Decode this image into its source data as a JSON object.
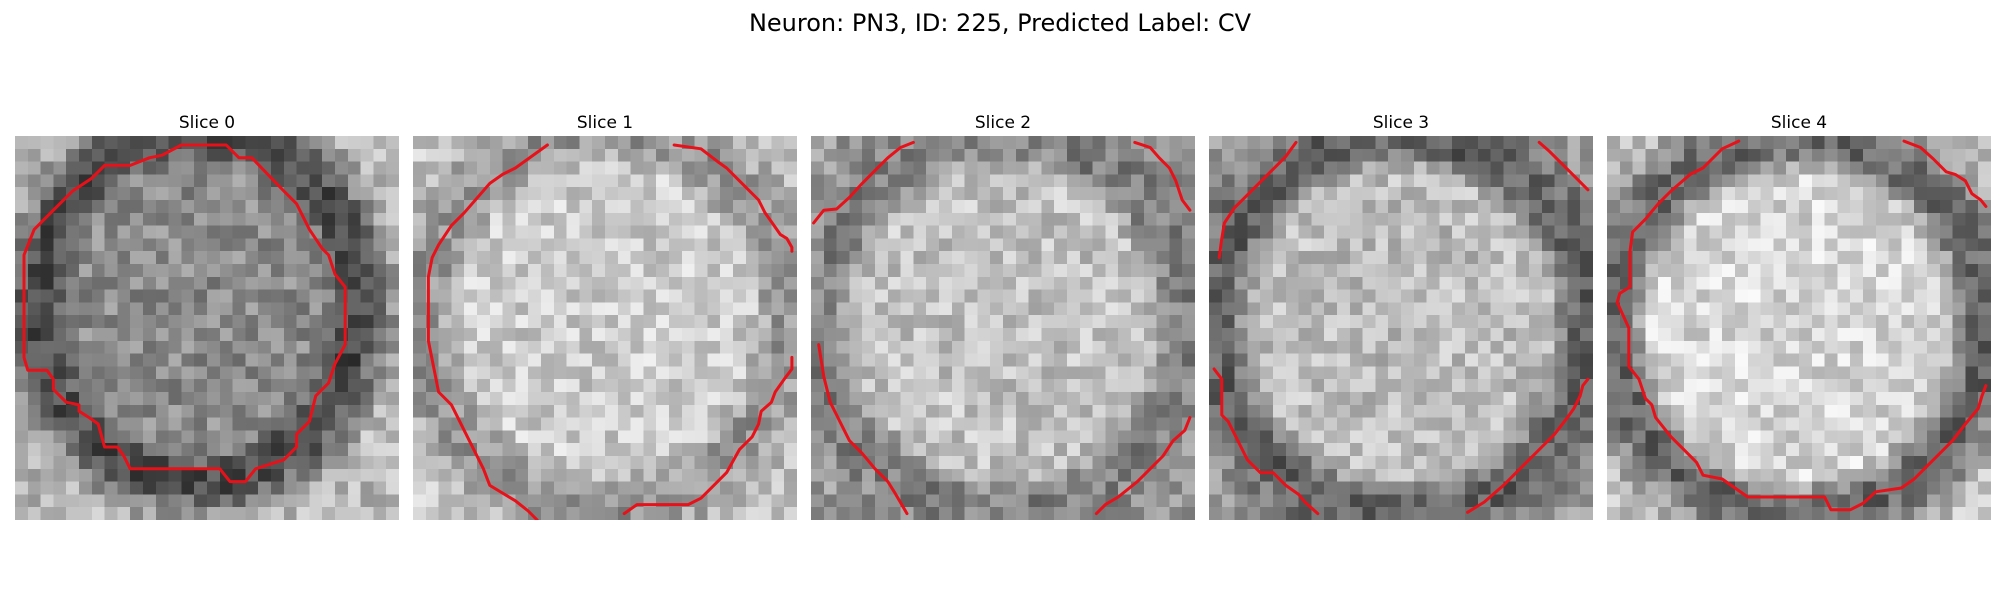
{
  "figure": {
    "title": "Neuron: PN3, ID: 225, Predicted Label: CV"
  },
  "colors": {
    "contour": "#e8111a",
    "background": "#ffffff"
  },
  "panels": [
    {
      "title": "Slice 0"
    },
    {
      "title": "Slice 1"
    },
    {
      "title": "Slice 2"
    },
    {
      "title": "Slice 3"
    },
    {
      "title": "Slice 4"
    }
  ]
}
